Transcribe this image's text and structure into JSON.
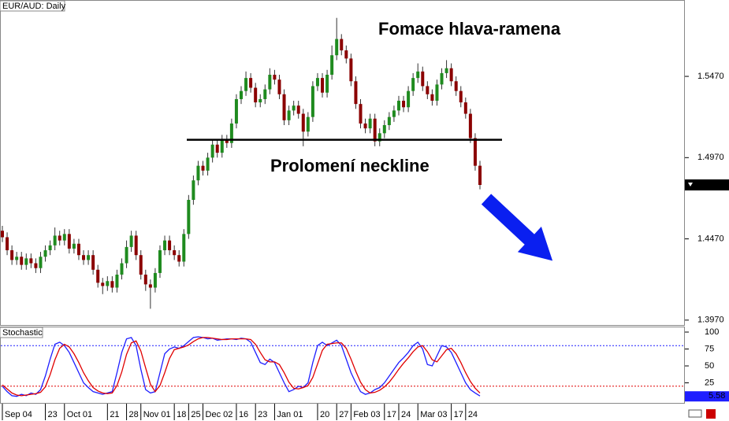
{
  "chart_data": [
    {
      "type": "candlestick",
      "title": "EUR/AUD: Daily",
      "annotations": [
        "Fomace hlava-ramena",
        "Prolomení neckline"
      ],
      "categories": [
        "Sep 04",
        null,
        null,
        null,
        null,
        null,
        null,
        null,
        null,
        "23",
        null,
        null,
        null,
        "Oct 01",
        null,
        null,
        null,
        null,
        null,
        null,
        null,
        null,
        "21",
        null,
        null,
        null,
        "28",
        null,
        null,
        "Nov 01",
        null,
        null,
        null,
        null,
        null,
        null,
        "18",
        null,
        null,
        "25",
        null,
        null,
        "Dec 02",
        null,
        null,
        null,
        null,
        null,
        null,
        "16",
        null,
        null,
        null,
        "23",
        null,
        null,
        null,
        "Jan 01",
        null,
        null,
        null,
        null,
        null,
        null,
        null,
        null,
        "20",
        null,
        null,
        null,
        "27",
        null,
        null,
        "Feb 03",
        null,
        null,
        null,
        null,
        null,
        null,
        "17",
        null,
        null,
        "24",
        null,
        null,
        null,
        "Mar 03",
        null,
        null,
        null,
        null,
        null,
        null,
        "17",
        null,
        null,
        "24",
        null,
        null,
        null
      ],
      "open": [
        1.452,
        1.448,
        1.44,
        1.434,
        1.436,
        1.431,
        1.435,
        1.432,
        1.429,
        1.436,
        1.44,
        1.443,
        1.449,
        1.446,
        1.45,
        1.441,
        1.444,
        1.437,
        1.434,
        1.437,
        1.428,
        1.42,
        1.418,
        1.421,
        1.417,
        1.425,
        1.432,
        1.442,
        1.449,
        1.437,
        1.425,
        1.419,
        1.417,
        1.426,
        1.44,
        1.446,
        1.44,
        1.437,
        1.433,
        1.45,
        1.471,
        1.483,
        1.492,
        1.489,
        1.497,
        1.505,
        1.5,
        1.508,
        1.506,
        1.518,
        1.533,
        1.538,
        1.546,
        1.54,
        1.531,
        1.533,
        1.539,
        1.548,
        1.545,
        1.536,
        1.52,
        1.526,
        1.529,
        1.524,
        1.513,
        1.522,
        1.541,
        1.546,
        1.537,
        1.548,
        1.56,
        1.57,
        1.563,
        1.558,
        1.544,
        1.53,
        1.518,
        1.515,
        1.521,
        1.507,
        1.512,
        1.517,
        1.522,
        1.526,
        1.532,
        1.528,
        1.538,
        1.546,
        1.55,
        1.541,
        1.536,
        1.532,
        1.542,
        1.549,
        1.552,
        1.544,
        1.538,
        1.531,
        1.524,
        1.509,
        1.492
      ],
      "high": [
        1.455,
        1.451,
        1.443,
        1.439,
        1.439,
        1.438,
        1.438,
        1.435,
        1.439,
        1.443,
        1.446,
        1.454,
        1.452,
        1.453,
        1.453,
        1.447,
        1.447,
        1.44,
        1.44,
        1.44,
        1.431,
        1.423,
        1.424,
        1.424,
        1.428,
        1.435,
        1.446,
        1.452,
        1.452,
        1.44,
        1.428,
        1.422,
        1.429,
        1.443,
        1.449,
        1.449,
        1.443,
        1.44,
        1.453,
        1.474,
        1.486,
        1.495,
        1.495,
        1.5,
        1.508,
        1.508,
        1.511,
        1.511,
        1.521,
        1.536,
        1.541,
        1.55,
        1.549,
        1.543,
        1.536,
        1.542,
        1.552,
        1.551,
        1.548,
        1.539,
        1.529,
        1.532,
        1.532,
        1.527,
        1.525,
        1.544,
        1.549,
        1.549,
        1.551,
        1.566,
        1.583,
        1.573,
        1.566,
        1.561,
        1.547,
        1.533,
        1.521,
        1.524,
        1.524,
        1.515,
        1.52,
        1.525,
        1.529,
        1.535,
        1.535,
        1.541,
        1.549,
        1.555,
        1.553,
        1.544,
        1.539,
        1.545,
        1.552,
        1.557,
        1.555,
        1.547,
        1.541,
        1.534,
        1.527,
        1.512,
        1.495
      ],
      "low": [
        1.445,
        1.437,
        1.431,
        1.431,
        1.428,
        1.428,
        1.429,
        1.426,
        1.426,
        1.433,
        1.437,
        1.44,
        1.443,
        1.443,
        1.438,
        1.438,
        1.434,
        1.431,
        1.431,
        1.425,
        1.417,
        1.413,
        1.415,
        1.414,
        1.414,
        1.422,
        1.429,
        1.439,
        1.434,
        1.422,
        1.415,
        1.404,
        1.414,
        1.423,
        1.437,
        1.437,
        1.434,
        1.43,
        1.43,
        1.447,
        1.468,
        1.48,
        1.486,
        1.486,
        1.494,
        1.497,
        1.497,
        1.503,
        1.503,
        1.515,
        1.53,
        1.535,
        1.537,
        1.528,
        1.528,
        1.53,
        1.536,
        1.542,
        1.533,
        1.517,
        1.517,
        1.523,
        1.521,
        1.504,
        1.51,
        1.519,
        1.538,
        1.534,
        1.534,
        1.545,
        1.557,
        1.56,
        1.555,
        1.541,
        1.527,
        1.515,
        1.512,
        1.512,
        1.504,
        1.504,
        1.509,
        1.514,
        1.519,
        1.523,
        1.525,
        1.525,
        1.535,
        1.543,
        1.538,
        1.533,
        1.529,
        1.529,
        1.539,
        1.546,
        1.541,
        1.535,
        1.528,
        1.521,
        1.506,
        1.489,
        1.4775
      ],
      "close": [
        1.448,
        1.44,
        1.434,
        1.436,
        1.431,
        1.435,
        1.432,
        1.429,
        1.436,
        1.44,
        1.443,
        1.449,
        1.446,
        1.45,
        1.441,
        1.444,
        1.437,
        1.434,
        1.437,
        1.428,
        1.42,
        1.418,
        1.421,
        1.417,
        1.425,
        1.432,
        1.442,
        1.449,
        1.437,
        1.425,
        1.419,
        1.417,
        1.426,
        1.44,
        1.446,
        1.44,
        1.437,
        1.433,
        1.45,
        1.471,
        1.483,
        1.492,
        1.489,
        1.497,
        1.505,
        1.5,
        1.508,
        1.506,
        1.518,
        1.533,
        1.538,
        1.546,
        1.54,
        1.531,
        1.533,
        1.539,
        1.548,
        1.545,
        1.536,
        1.52,
        1.526,
        1.529,
        1.524,
        1.513,
        1.522,
        1.541,
        1.546,
        1.537,
        1.548,
        1.56,
        1.57,
        1.563,
        1.558,
        1.544,
        1.53,
        1.518,
        1.515,
        1.521,
        1.507,
        1.512,
        1.517,
        1.522,
        1.526,
        1.532,
        1.528,
        1.538,
        1.546,
        1.55,
        1.541,
        1.536,
        1.532,
        1.542,
        1.549,
        1.552,
        1.544,
        1.538,
        1.531,
        1.524,
        1.509,
        1.492,
        1.4802
      ],
      "up_color": "#1f8b1f",
      "down_color": "#8b0000",
      "ylim": [
        1.394,
        1.594
      ],
      "yticks": [
        {
          "value": 1.397,
          "label": "1.3970"
        },
        {
          "value": 1.447,
          "label": "1.4470"
        },
        {
          "value": 1.497,
          "label": "1.4970"
        },
        {
          "value": 1.547,
          "label": "1.5470"
        }
      ],
      "neckline": 1.508
    },
    {
      "type": "line",
      "title": "Stochastic",
      "series": [
        {
          "color": "#1e1eff",
          "values": [
            20,
            12,
            6,
            5,
            8,
            6,
            10,
            8,
            15,
            35,
            60,
            82,
            85,
            80,
            70,
            55,
            40,
            25,
            18,
            12,
            10,
            8,
            10,
            12,
            40,
            70,
            90,
            92,
            80,
            45,
            15,
            10,
            12,
            40,
            68,
            75,
            78,
            76,
            80,
            86,
            92,
            93,
            92,
            90,
            91,
            88,
            89,
            90,
            90,
            89,
            91,
            90,
            85,
            70,
            55,
            52,
            60,
            55,
            40,
            25,
            12,
            15,
            20,
            18,
            25,
            55,
            80,
            85,
            80,
            84,
            88,
            80,
            60,
            40,
            25,
            12,
            8,
            10,
            15,
            18,
            25,
            35,
            45,
            55,
            62,
            70,
            80,
            85,
            75,
            52,
            50,
            65,
            80,
            78,
            70,
            55,
            40,
            25,
            15,
            10,
            5.58
          ]
        },
        {
          "color": "#e00000",
          "values": [
            22,
            16,
            10,
            7,
            6,
            7,
            8,
            9,
            11,
            19,
            37,
            59,
            76,
            82,
            78,
            68,
            55,
            40,
            28,
            18,
            13,
            10,
            9,
            10,
            21,
            41,
            67,
            84,
            87,
            72,
            47,
            23,
            12,
            21,
            40,
            61,
            74,
            76,
            78,
            81,
            86,
            90,
            92,
            92,
            91,
            90,
            89,
            89,
            90,
            90,
            90,
            90,
            89,
            82,
            70,
            59,
            56,
            56,
            52,
            40,
            26,
            17,
            16,
            18,
            21,
            33,
            53,
            73,
            82,
            83,
            84,
            84,
            76,
            60,
            42,
            26,
            15,
            10,
            11,
            14,
            19,
            26,
            35,
            45,
            54,
            62,
            71,
            78,
            80,
            71,
            59,
            56,
            65,
            74,
            76,
            68,
            55,
            40,
            27,
            17,
            10
          ]
        }
      ],
      "ylim": [
        0,
        100
      ],
      "yticks": [
        25,
        50,
        75,
        100
      ],
      "levels": [
        {
          "value": 20,
          "color": "#e00000"
        },
        {
          "value": 80,
          "color": "#1e1eff"
        }
      ]
    }
  ]
}
